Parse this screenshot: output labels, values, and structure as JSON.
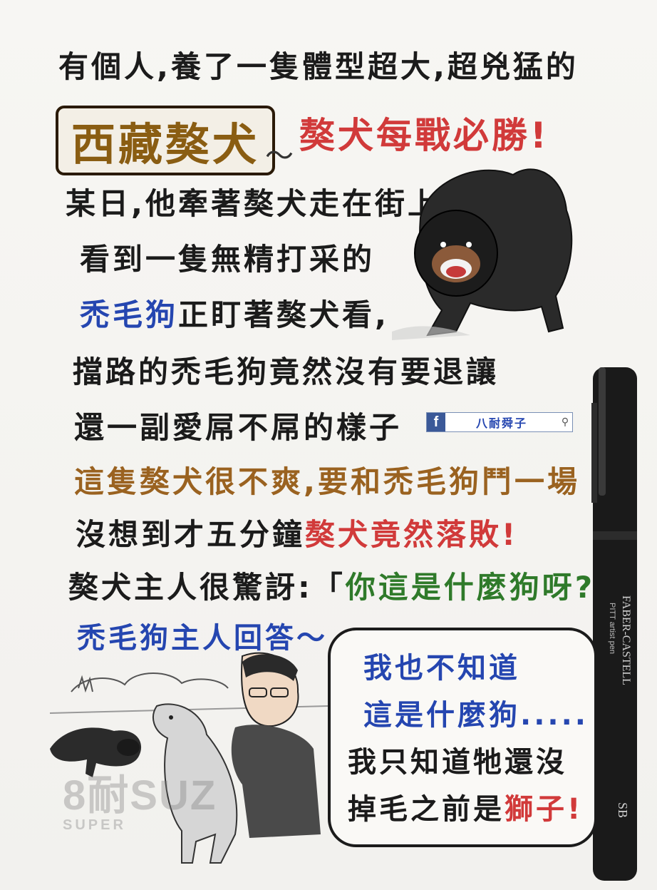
{
  "lines": {
    "line1": "有個人,養了一隻體型超大,超兇猛的",
    "title": "西藏獒犬",
    "wave": "～",
    "title_right": "獒犬每戰必勝!",
    "line3": "某日,他牽著獒犬走在街上",
    "line4": "看到一隻無精打采的",
    "line5_blue": "禿毛狗",
    "line5_rest": "正盯著獒犬看,",
    "line6": "擋路的禿毛狗竟然沒有要退讓",
    "line7": "還一副愛屌不屌的樣子",
    "line8": "這隻獒犬很不爽,要和禿毛狗鬥一場",
    "line9_start": "沒想到才五分鐘",
    "line9_red": "獒犬竟然落敗!",
    "line10_start": "獒犬主人很驚訝:「",
    "line10_green": "你這是什麼狗呀?",
    "line10_end": "」",
    "line11": "禿毛狗主人回答～"
  },
  "bubble": {
    "line1": "我也不知道",
    "line2": "這是什麼狗.....",
    "line3": "我只知道牠還沒",
    "line4_start": "掉毛之前是",
    "line4_red": "獅子!"
  },
  "fb_tag": {
    "icon": "f",
    "name": "八耐舜子",
    "search_icon": "magnifier-icon"
  },
  "watermark": {
    "main": "8耐SUZ",
    "sub": "SUPER"
  },
  "pen": {
    "brand": "FABER-CASTELL",
    "model": "PITT artist pen",
    "size": "SB"
  },
  "colors": {
    "brown": "#8a5d12",
    "red": "#d13a3a",
    "blue": "#2546b0",
    "green": "#2f7a2a",
    "tan": "#9a6220"
  }
}
